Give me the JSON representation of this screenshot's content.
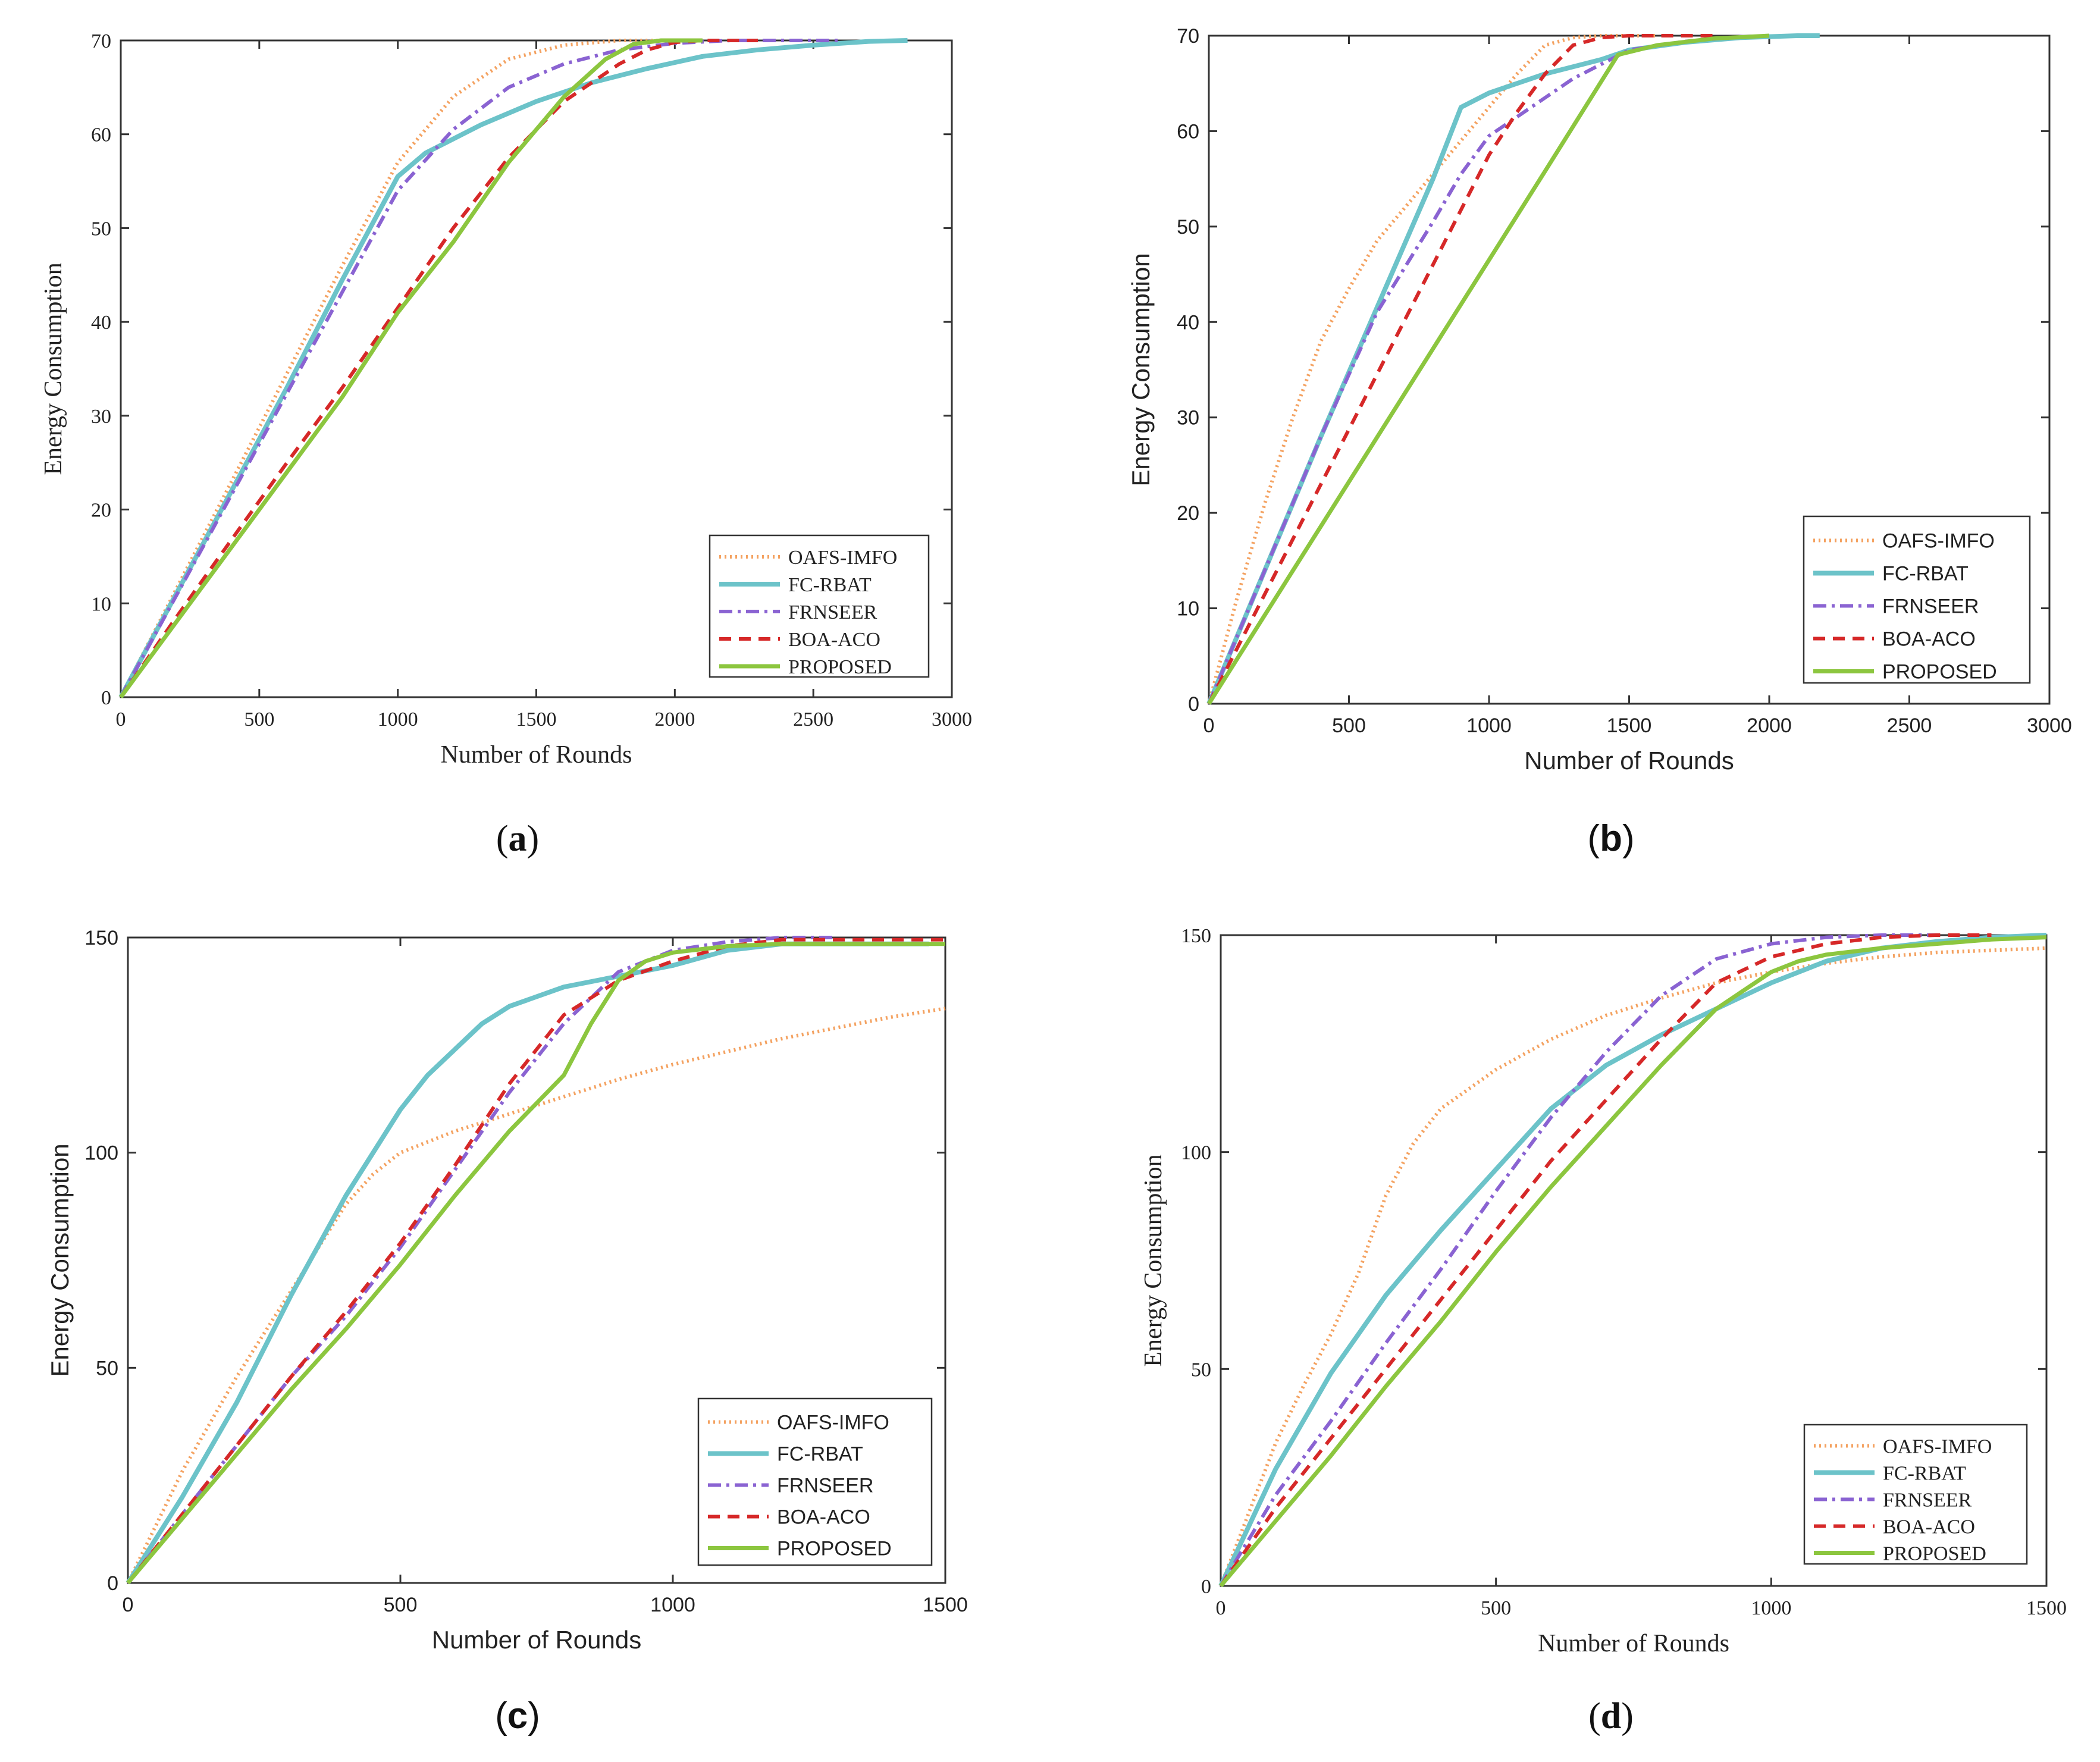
{
  "colors": {
    "OAFS-IMFO": "#f4a261",
    "FC-RBAT": "#6cc3c9",
    "FRNSEER": "#8a63d2",
    "BOA-ACO": "#d62828",
    "PROPOSED": "#8cc63f"
  },
  "styles": {
    "OAFS-IMFO": "dotted",
    "FC-RBAT": "solid-thick",
    "FRNSEER": "dashdot",
    "BOA-ACO": "dashed",
    "PROPOSED": "solid"
  },
  "chart_data": [
    {
      "type": "line",
      "panel_label": "(a)",
      "xlabel": "Number of Rounds",
      "ylabel": "Energy Consumption",
      "xlim": [
        0,
        3000
      ],
      "ylim": [
        0,
        70
      ],
      "xticks": [
        0,
        500,
        1000,
        1500,
        2000,
        2500,
        3000
      ],
      "yticks": [
        0,
        10,
        20,
        30,
        40,
        50,
        60,
        70
      ],
      "legend_position": "bottom-right",
      "series": [
        {
          "name": "OAFS-IMFO",
          "x": [
            0,
            200,
            400,
            600,
            800,
            1000,
            1200,
            1400,
            1600,
            1800,
            2000
          ],
          "y": [
            0,
            11.5,
            23,
            34.5,
            46,
            57,
            64,
            68,
            69.5,
            70,
            70
          ]
        },
        {
          "name": "FC-RBAT",
          "x": [
            0,
            200,
            400,
            600,
            800,
            1000,
            1100,
            1300,
            1500,
            1700,
            1900,
            2100,
            2300,
            2500,
            2700,
            2840
          ],
          "y": [
            0,
            11,
            22,
            33,
            44.5,
            55.5,
            58,
            61,
            63.5,
            65.5,
            67,
            68.3,
            69,
            69.5,
            69.9,
            70
          ]
        },
        {
          "name": "FRNSEER",
          "x": [
            0,
            200,
            400,
            600,
            800,
            1000,
            1200,
            1400,
            1600,
            1800,
            2000,
            2200,
            2600
          ],
          "y": [
            0,
            10.8,
            21.6,
            32.4,
            43.2,
            54,
            60.5,
            65,
            67.5,
            69,
            69.7,
            70,
            70
          ]
        },
        {
          "name": "BOA-ACO",
          "x": [
            0,
            200,
            400,
            600,
            800,
            1000,
            1200,
            1400,
            1600,
            1800,
            1900,
            2000,
            2100,
            2300
          ],
          "y": [
            0,
            8.5,
            16.8,
            25,
            33,
            41.5,
            50,
            57.5,
            63.5,
            67.5,
            69,
            69.8,
            70,
            70
          ]
        },
        {
          "name": "PROPOSED",
          "x": [
            0,
            200,
            400,
            600,
            800,
            1000,
            1200,
            1400,
            1600,
            1750,
            1850,
            1950,
            2100
          ],
          "y": [
            0,
            8,
            16,
            24,
            32,
            41,
            48.5,
            57,
            64,
            68,
            69.6,
            70,
            70
          ]
        }
      ]
    },
    {
      "type": "line",
      "panel_label": "(b)",
      "xlabel": "Number of Rounds",
      "ylabel": "Energy Consumption",
      "xlim": [
        0,
        3000
      ],
      "ylim": [
        0,
        70
      ],
      "xticks": [
        0,
        500,
        1000,
        1500,
        2000,
        2500,
        3000
      ],
      "yticks": [
        0,
        10,
        20,
        30,
        40,
        50,
        60,
        70
      ],
      "legend_position": "bottom-right",
      "series": [
        {
          "name": "OAFS-IMFO",
          "x": [
            0,
            100,
            200,
            300,
            400,
            500,
            600,
            700,
            800,
            900,
            1000,
            1100,
            1200,
            1300,
            1400,
            1600
          ],
          "y": [
            0,
            11,
            21,
            30,
            38,
            43.5,
            48.5,
            52,
            55.5,
            59,
            62.5,
            66,
            69,
            69.8,
            70,
            70
          ]
        },
        {
          "name": "FC-RBAT",
          "x": [
            0,
            200,
            400,
            600,
            800,
            900,
            1000,
            1200,
            1400,
            1500,
            1700,
            1900,
            2100,
            2180
          ],
          "y": [
            0,
            14,
            28,
            41.5,
            55,
            62.5,
            64,
            66,
            67.5,
            68.5,
            69.3,
            69.8,
            70,
            70
          ]
        },
        {
          "name": "FRNSEER",
          "x": [
            0,
            200,
            400,
            600,
            800,
            900,
            1000,
            1100,
            1200,
            1300,
            1400,
            1500,
            1700,
            1900,
            2000
          ],
          "y": [
            0,
            14,
            28,
            41,
            50.5,
            55.5,
            59.5,
            61.5,
            63.5,
            65.5,
            67,
            68.5,
            69.4,
            69.9,
            70
          ]
        },
        {
          "name": "BOA-ACO",
          "x": [
            0,
            200,
            400,
            600,
            800,
            1000,
            1100,
            1200,
            1300,
            1400,
            1500,
            1600,
            1800
          ],
          "y": [
            0,
            11.5,
            23,
            34.5,
            46,
            57.5,
            62,
            66,
            69,
            69.8,
            70,
            70,
            70
          ]
        },
        {
          "name": "PROPOSED",
          "x": [
            0,
            200,
            400,
            600,
            800,
            1000,
            1200,
            1460,
            1600,
            1800,
            2000
          ],
          "y": [
            0,
            9.3,
            18.6,
            27.9,
            37.2,
            46.5,
            55.8,
            68,
            69,
            69.7,
            70
          ]
        }
      ]
    },
    {
      "type": "line",
      "panel_label": "(c)",
      "xlabel": "Number of Rounds",
      "ylabel": "Energy Consumption",
      "xlim": [
        0,
        1500
      ],
      "ylim": [
        0,
        150
      ],
      "xticks": [
        0,
        500,
        1000,
        1500
      ],
      "yticks": [
        0,
        50,
        100,
        150
      ],
      "legend_position": "bottom-right",
      "series": [
        {
          "name": "OAFS-IMFO",
          "x": [
            0,
            100,
            200,
            300,
            400,
            450,
            500,
            600,
            700,
            800,
            900,
            1000,
            1100,
            1200,
            1300,
            1400,
            1500
          ],
          "y": [
            0,
            26,
            48,
            68,
            88,
            95,
            100,
            105,
            109,
            113,
            117,
            120.5,
            123.5,
            126.5,
            129,
            131.5,
            133.5
          ]
        },
        {
          "name": "FC-RBAT",
          "x": [
            0,
            100,
            200,
            300,
            400,
            450,
            500,
            550,
            600,
            650,
            700,
            800,
            900,
            1000,
            1100,
            1200,
            1300,
            1470
          ],
          "y": [
            0,
            20,
            42,
            67,
            90,
            100,
            110,
            118,
            124,
            130,
            134,
            138.5,
            141,
            143.5,
            147,
            148.5,
            148.5,
            148.5
          ]
        },
        {
          "name": "FRNSEER",
          "x": [
            0,
            100,
            200,
            300,
            400,
            500,
            600,
            700,
            800,
            900,
            1000,
            1100,
            1200,
            1300
          ],
          "y": [
            0,
            16,
            32,
            48,
            62,
            78,
            96,
            114,
            130,
            142,
            147,
            149,
            150,
            150
          ]
        },
        {
          "name": "BOA-ACO",
          "x": [
            0,
            100,
            200,
            300,
            400,
            500,
            600,
            700,
            800,
            900,
            1000,
            1100,
            1200,
            1500
          ],
          "y": [
            0,
            16,
            32,
            48,
            63,
            79,
            97,
            116,
            132,
            140,
            144.5,
            148,
            149.5,
            149.5
          ]
        },
        {
          "name": "PROPOSED",
          "x": [
            0,
            100,
            200,
            300,
            400,
            500,
            600,
            700,
            800,
            850,
            900,
            950,
            1000,
            1100,
            1200,
            1500
          ],
          "y": [
            0,
            15,
            30,
            45,
            59,
            74,
            90,
            105,
            118,
            130,
            140,
            144.5,
            146.5,
            148,
            148.5,
            148.5
          ]
        }
      ]
    },
    {
      "type": "line",
      "panel_label": "(d)",
      "xlabel": "Number of Rounds",
      "ylabel": "Energy Consumption",
      "xlim": [
        0,
        1500
      ],
      "ylim": [
        0,
        150
      ],
      "xticks": [
        0,
        500,
        1000,
        1500
      ],
      "yticks": [
        0,
        50,
        100,
        150
      ],
      "legend_position": "bottom-right",
      "series": [
        {
          "name": "OAFS-IMFO",
          "x": [
            0,
            100,
            150,
            200,
            250,
            300,
            350,
            400,
            500,
            600,
            700,
            800,
            900,
            1000,
            1100,
            1200,
            1300,
            1400,
            1500
          ],
          "y": [
            0,
            33,
            46,
            58,
            72,
            90,
            102,
            110,
            119,
            126,
            131.5,
            135.5,
            139,
            141.5,
            143.5,
            145,
            146,
            146.5,
            147
          ]
        },
        {
          "name": "FC-RBAT",
          "x": [
            0,
            100,
            200,
            300,
            400,
            500,
            600,
            700,
            800,
            900,
            1000,
            1100,
            1200,
            1300,
            1400,
            1500
          ],
          "y": [
            0,
            27,
            49,
            67,
            82,
            96,
            110,
            120,
            127,
            133,
            139,
            144,
            147,
            148.5,
            149.5,
            150
          ]
        },
        {
          "name": "FRNSEER",
          "x": [
            0,
            100,
            200,
            300,
            400,
            500,
            600,
            700,
            800,
            900,
            1000,
            1100,
            1200,
            1300
          ],
          "y": [
            0,
            21,
            38,
            56,
            73,
            91,
            108,
            123,
            136,
            144.5,
            148,
            149.5,
            150,
            150
          ]
        },
        {
          "name": "BOA-ACO",
          "x": [
            0,
            100,
            200,
            300,
            400,
            500,
            600,
            700,
            800,
            900,
            1000,
            1100,
            1200,
            1300,
            1400
          ],
          "y": [
            0,
            18,
            34,
            50,
            66,
            82,
            98,
            112,
            126,
            139,
            145,
            148,
            149.5,
            150,
            150
          ]
        },
        {
          "name": "PROPOSED",
          "x": [
            0,
            100,
            200,
            300,
            400,
            500,
            600,
            700,
            800,
            900,
            1000,
            1050,
            1100,
            1200,
            1300,
            1400,
            1500
          ],
          "y": [
            0,
            15,
            30,
            46,
            61,
            77,
            92,
            106,
            120,
            133,
            141.5,
            144,
            145.5,
            147,
            148,
            149,
            149.5
          ]
        }
      ]
    }
  ]
}
